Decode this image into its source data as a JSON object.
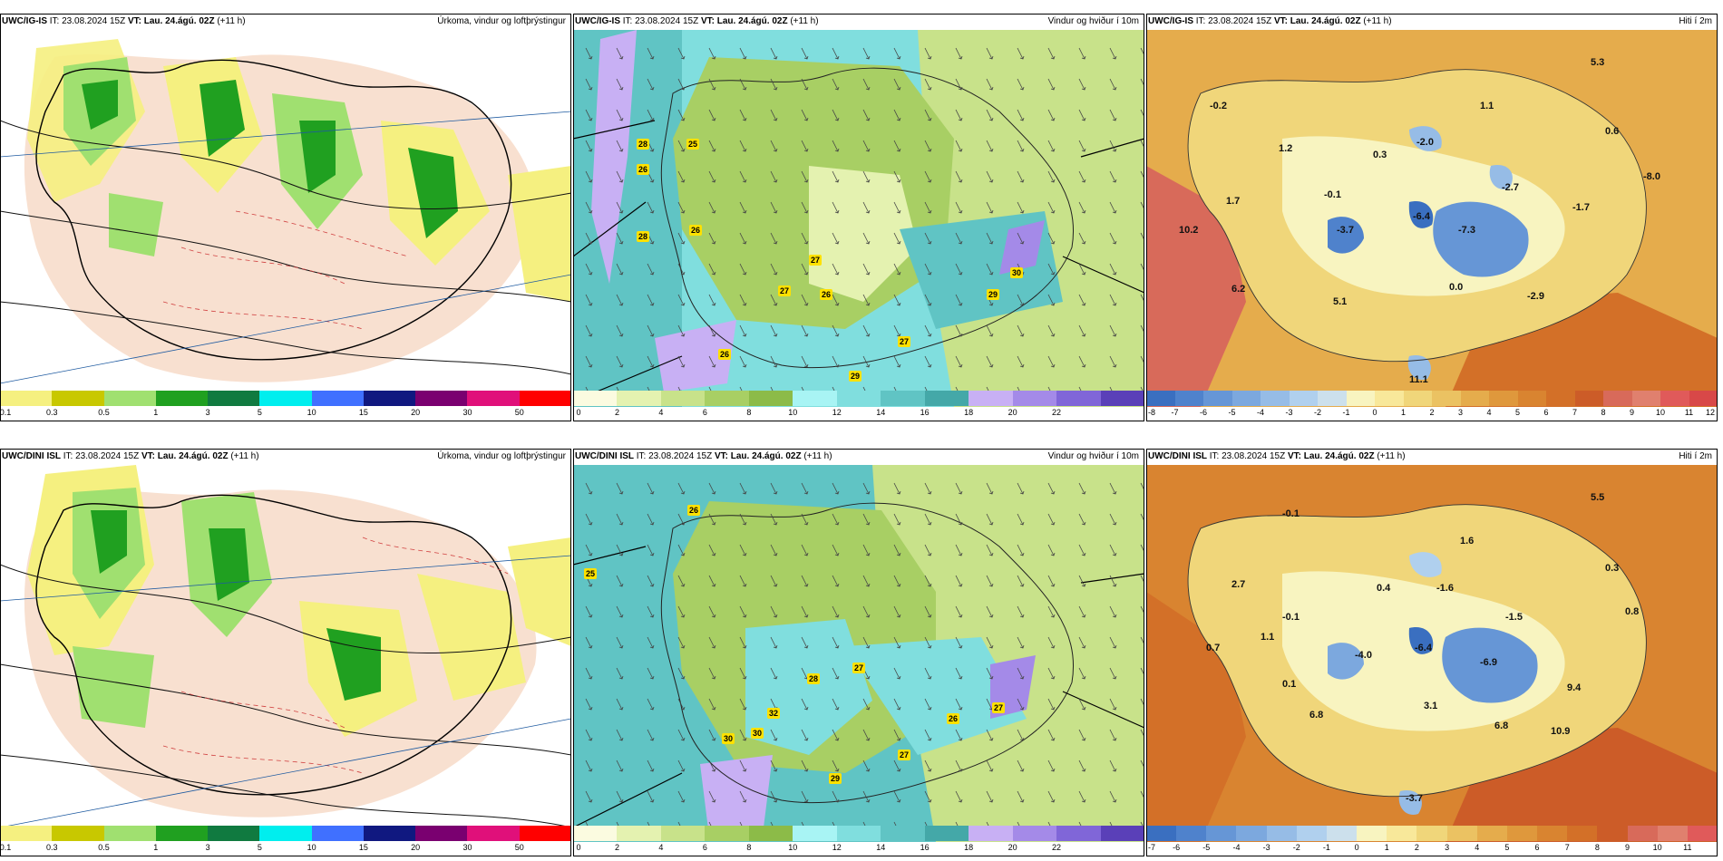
{
  "rows": [
    {
      "row_id": "ig-is",
      "panels": [
        {
          "model": "UWC/IG-IS",
          "it_prefix": "IT: 23.08.2024 15Z",
          "vt": "VT: Lau. 24.ágú. 02Z",
          "lead": "(+11 h)",
          "title": "Úrkoma, vindur og loftþrýstingur",
          "colorbar": {
            "colors": [
              "#f5f080",
              "#c8c800",
              "#a0e070",
              "#20a020",
              "#107a40",
              "#00eeee",
              "#4070ff",
              "#101880",
              "#7a0070",
              "#e0107a",
              "#ff0000"
            ],
            "ticks": [
              "0.1",
              "0.3",
              "0.5",
              "1",
              "3",
              "5",
              "10",
              "15",
              "20",
              "30",
              "50"
            ]
          },
          "labels": []
        },
        {
          "model": "UWC/IG-IS",
          "it_prefix": "IT: 23.08.2024 15Z",
          "vt": "VT: Lau. 24.ágú. 02Z",
          "lead": "(+11 h)",
          "title": "Vindur og hviður í 10m",
          "colorbar": {
            "colors": [
              "#fbfbe0",
              "#e4f2b0",
              "#c8e28a",
              "#a8cf64",
              "#8cbb48",
              "#a8f4f4",
              "#80dede",
              "#60c4c4",
              "#44a8a8",
              "#c8b0f4",
              "#a48ae8",
              "#8066d8",
              "#5a40b8"
            ],
            "ticks": [
              "0",
              "2",
              "4",
              "6",
              "8",
              "10",
              "12",
              "14",
              "16",
              "18",
              "20",
              "22"
            ]
          },
          "labels": [
            "28",
            "25",
            "26",
            "28",
            "26",
            "27",
            "27",
            "26",
            "30",
            "29",
            "27",
            "26",
            "29"
          ]
        },
        {
          "model": "UWC/IG-IS",
          "it_prefix": "IT: 23.08.2024 15Z",
          "vt": "VT: Lau. 24.ágú. 02Z",
          "lead": "(+11 h)",
          "title": "Hiti í 2m",
          "colorbar": {
            "colors": [
              "#3a6fc0",
              "#4f82cc",
              "#6696d6",
              "#7ca8de",
              "#96bce6",
              "#b0d0ee",
              "#cce0ec",
              "#f8f4c0",
              "#f8e89a",
              "#f0d67a",
              "#ebc262",
              "#e5ac4c",
              "#df983c",
              "#d98430",
              "#d37028",
              "#cc5c28",
              "#d86a5a",
              "#e0806e",
              "#e05a5a",
              "#d84848"
            ],
            "ticks": [
              "-8",
              "-7",
              "-6",
              "-5",
              "-4",
              "-3",
              "-2",
              "-1",
              "0",
              "1",
              "2",
              "3",
              "4",
              "5",
              "6",
              "7",
              "8",
              "9",
              "10",
              "11",
              "12"
            ]
          },
          "labels": [
            "5.3",
            "-0.2",
            "1.1",
            "1.2",
            "0.3",
            "-2.0",
            "0.6",
            "1.7",
            "-0.1",
            "-2.7",
            "-1.7",
            "-8.0",
            "10.2",
            "-3.7",
            "-6.4",
            "-7.3",
            "6.2",
            "5.1",
            "0.0",
            "-2.9",
            "11.1"
          ]
        }
      ]
    },
    {
      "row_id": "dini-isl",
      "panels": [
        {
          "model": "UWC/DINI ISL",
          "it_prefix": "IT: 23.08.2024 15Z",
          "vt": "VT: Lau. 24.ágú. 02Z",
          "lead": "(+11 h)",
          "title": "Úrkoma, vindur og loftþrýstingur",
          "colorbar": {
            "colors": [
              "#f5f080",
              "#c8c800",
              "#a0e070",
              "#20a020",
              "#107a40",
              "#00eeee",
              "#4070ff",
              "#101880",
              "#7a0070",
              "#e0107a",
              "#ff0000"
            ],
            "ticks": [
              "0.1",
              "0.3",
              "0.5",
              "1",
              "3",
              "5",
              "10",
              "15",
              "20",
              "30",
              "50"
            ]
          },
          "labels": []
        },
        {
          "model": "UWC/DINI ISL",
          "it_prefix": "IT: 23.08.2024 15Z",
          "vt": "VT: Lau. 24.ágú. 02Z",
          "lead": "(+11 h)",
          "title": "Vindur og hviður í 10m",
          "colorbar": {
            "colors": [
              "#fbfbe0",
              "#e4f2b0",
              "#c8e28a",
              "#a8cf64",
              "#8cbb48",
              "#a8f4f4",
              "#80dede",
              "#60c4c4",
              "#44a8a8",
              "#c8b0f4",
              "#a48ae8",
              "#8066d8",
              "#5a40b8"
            ],
            "ticks": [
              "0",
              "2",
              "4",
              "6",
              "8",
              "10",
              "12",
              "14",
              "16",
              "18",
              "20",
              "22"
            ]
          },
          "labels": [
            "26",
            "25",
            "28",
            "27",
            "32",
            "30",
            "30",
            "26",
            "27",
            "27",
            "29"
          ]
        },
        {
          "model": "UWC/DINI ISL",
          "it_prefix": "IT: 23.08.2024 15Z",
          "vt": "VT: Lau. 24.ágú. 02Z",
          "lead": "(+11 h)",
          "title": "Hiti í 2m",
          "colorbar": {
            "colors": [
              "#3a6fc0",
              "#4f82cc",
              "#6696d6",
              "#7ca8de",
              "#96bce6",
              "#b0d0ee",
              "#cce0ec",
              "#f8f4c0",
              "#f8e89a",
              "#f0d67a",
              "#ebc262",
              "#e5ac4c",
              "#df983c",
              "#d98430",
              "#d37028",
              "#cc5c28",
              "#d86a5a",
              "#e0806e",
              "#e05a5a"
            ],
            "ticks": [
              "-7",
              "-6",
              "-5",
              "-4",
              "-3",
              "-2",
              "-1",
              "0",
              "1",
              "2",
              "3",
              "4",
              "5",
              "6",
              "7",
              "8",
              "9",
              "10",
              "11"
            ]
          },
          "labels": [
            "5.5",
            "-0.1",
            "1.6",
            "0.3",
            "2.7",
            "0.4",
            "-1.6",
            "-0.1",
            "-1.5",
            "0.8",
            "0.7",
            "1.1",
            "-4.0",
            "-6.4",
            "-6.9",
            "0.1",
            "9.4",
            "6.8",
            "3.1",
            "6.8",
            "10.9",
            "-3.7"
          ]
        }
      ]
    }
  ]
}
